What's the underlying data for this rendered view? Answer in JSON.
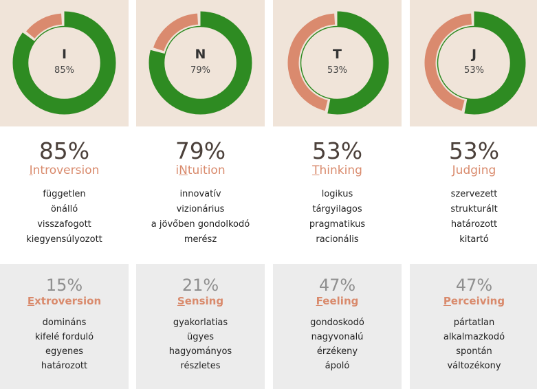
{
  "colors": {
    "primary": "#2e8b22",
    "secondary": "#da8a6e",
    "top_bg": "#f0e4d9",
    "bottom_bg": "#ececec",
    "accent_text": "#d98a6c"
  },
  "dimensions": [
    {
      "letter": "I",
      "primary_percent": 85,
      "primary_pct_label": "85%",
      "primary_name": "Introversion",
      "primary_highlight_index": 0,
      "primary_traits": [
        "független",
        "önálló",
        "visszafogott",
        "kiegyensúlyozott"
      ],
      "secondary_pct_label": "15%",
      "secondary_name": "Extroversion",
      "secondary_highlight_index": 0,
      "secondary_traits": [
        "domináns",
        "kifelé forduló",
        "egyenes",
        "határozott"
      ]
    },
    {
      "letter": "N",
      "primary_percent": 79,
      "primary_pct_label": "79%",
      "primary_name": "iNtuition",
      "primary_highlight_index": 1,
      "primary_traits": [
        "innovatív",
        "vizionárius",
        "a jövőben gondolkodó",
        "merész"
      ],
      "secondary_pct_label": "21%",
      "secondary_name": "Sensing",
      "secondary_highlight_index": 0,
      "secondary_traits": [
        "gyakorlatias",
        "ügyes",
        "hagyományos",
        "részletes"
      ]
    },
    {
      "letter": "T",
      "primary_percent": 53,
      "primary_pct_label": "53%",
      "primary_name": "Thinking",
      "primary_highlight_index": 0,
      "primary_traits": [
        "logikus",
        "tárgyilagos",
        "pragmatikus",
        "racionális"
      ],
      "secondary_pct_label": "47%",
      "secondary_name": "Feeling",
      "secondary_highlight_index": 0,
      "secondary_traits": [
        "gondoskodó",
        "nagyvonalú",
        "érzékeny",
        "ápoló"
      ]
    },
    {
      "letter": "J",
      "primary_percent": 53,
      "primary_pct_label": "53%",
      "primary_name": "Judging",
      "primary_highlight_index": 0,
      "primary_traits": [
        "szervezett",
        "strukturált",
        "határozott",
        "kitartó"
      ],
      "secondary_pct_label": "47%",
      "secondary_name": "Perceiving",
      "secondary_highlight_index": 0,
      "secondary_traits": [
        "pártatlan",
        "alkalmazkodó",
        "spontán",
        "változékony"
      ]
    }
  ]
}
